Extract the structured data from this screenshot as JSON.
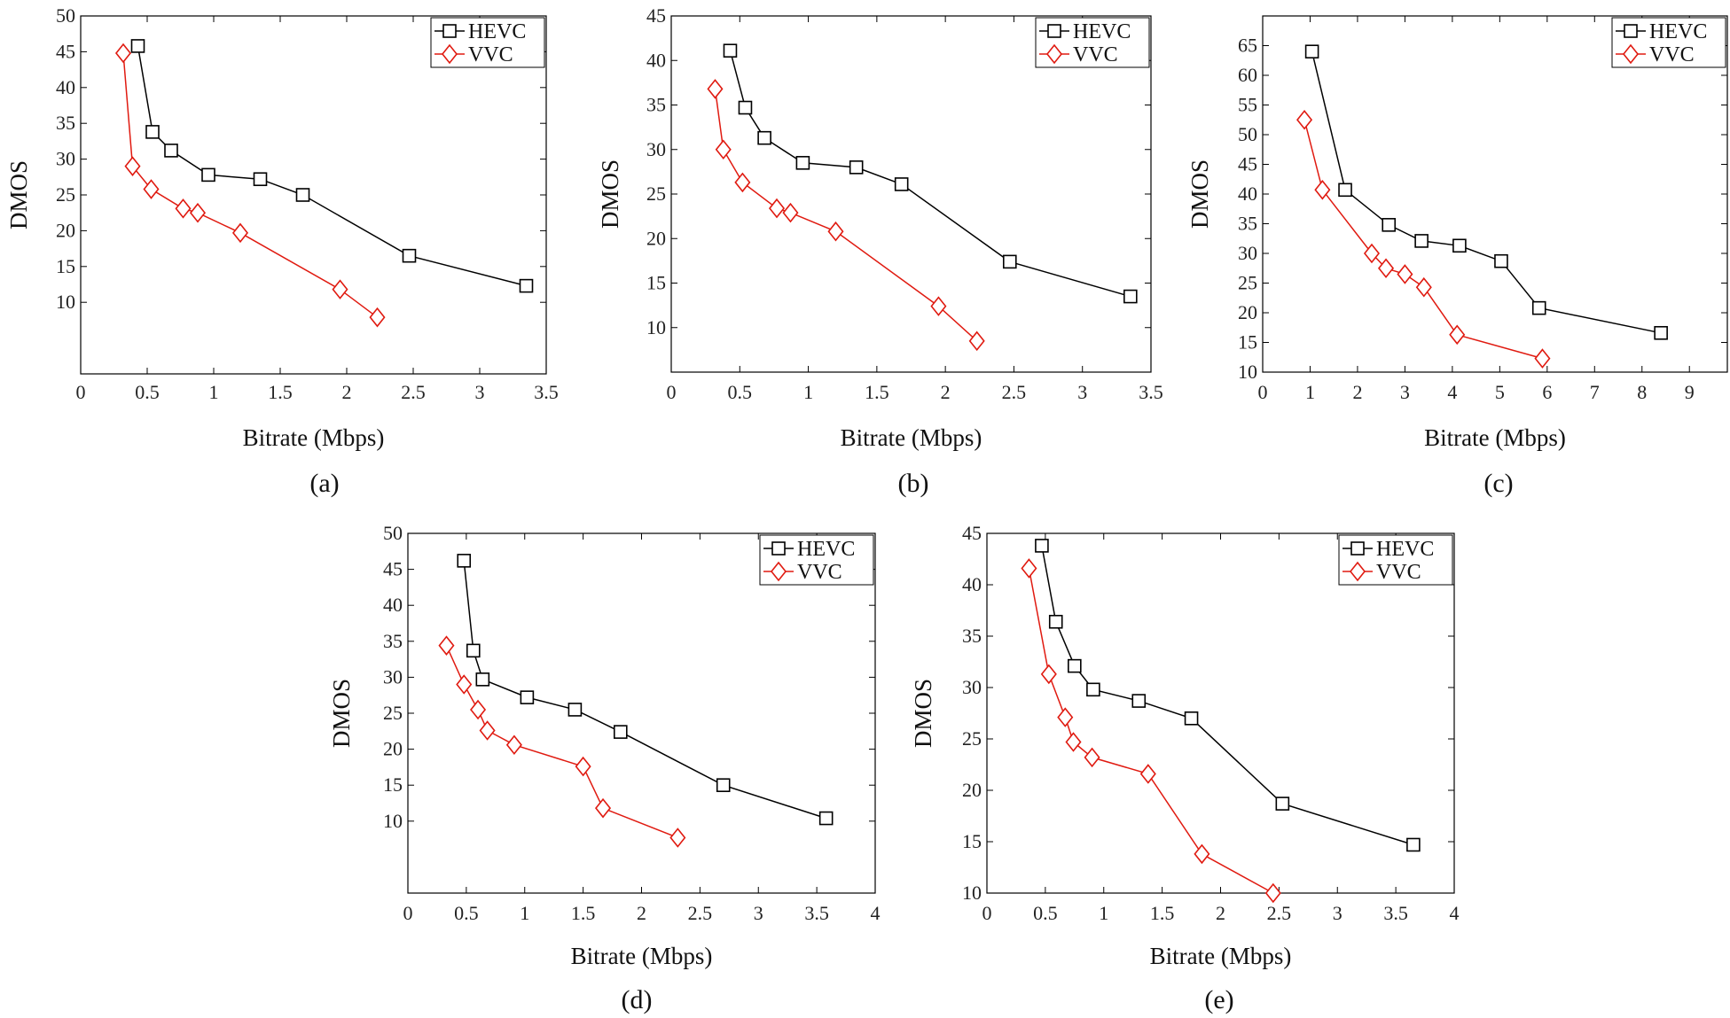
{
  "series_names": [
    "HEVC",
    "VVC"
  ],
  "colors": {
    "HEVC": "#000000",
    "VVC": "#e01a10"
  },
  "chart_data": [
    {
      "type": "line",
      "caption": "(a)",
      "xlabel": "Bitrate (Mbps)",
      "ylabel": "DMOS",
      "xlim": [
        0,
        3.5
      ],
      "ylim": [
        0,
        50
      ],
      "xticks": [
        0,
        0.5,
        1,
        1.5,
        2,
        2.5,
        3,
        3.5
      ],
      "xtick_labels": [
        "0",
        "0.5",
        "1",
        "1.5",
        "2",
        "2.5",
        "3",
        "3.5"
      ],
      "yticks": [
        10,
        15,
        20,
        25,
        30,
        35,
        40,
        45,
        50
      ],
      "ytick_labels": [
        "10",
        "15",
        "20",
        "25",
        "30",
        "35",
        "40",
        "45",
        "50"
      ],
      "legend": "top-right",
      "series": [
        {
          "name": "HEVC",
          "marker": "square",
          "x": [
            0.43,
            0.54,
            0.68,
            0.96,
            1.35,
            1.67,
            2.47,
            3.35
          ],
          "y": [
            45.8,
            33.8,
            31.2,
            27.8,
            27.2,
            25.0,
            16.5,
            12.3
          ]
        },
        {
          "name": "VVC",
          "marker": "diamond",
          "x": [
            0.32,
            0.39,
            0.53,
            0.77,
            0.88,
            1.2,
            1.95,
            2.23
          ],
          "y": [
            44.8,
            29.0,
            25.8,
            23.1,
            22.5,
            19.7,
            11.8,
            7.9
          ]
        }
      ]
    },
    {
      "type": "line",
      "caption": "(b)",
      "xlabel": "Bitrate (Mbps)",
      "ylabel": "DMOS",
      "xlim": [
        0,
        3.5
      ],
      "ylim": [
        5,
        45
      ],
      "xticks": [
        0,
        0.5,
        1,
        1.5,
        2,
        2.5,
        3,
        3.5
      ],
      "xtick_labels": [
        "0",
        "0.5",
        "1",
        "1.5",
        "2",
        "2.5",
        "3",
        "3.5"
      ],
      "yticks": [
        10,
        15,
        20,
        25,
        30,
        35,
        40,
        45
      ],
      "ytick_labels": [
        "10",
        "15",
        "20",
        "25",
        "30",
        "35",
        "40",
        "45"
      ],
      "legend": "top-right",
      "series": [
        {
          "name": "HEVC",
          "marker": "square",
          "x": [
            0.43,
            0.54,
            0.68,
            0.96,
            1.35,
            1.68,
            2.47,
            3.35
          ],
          "y": [
            41.1,
            34.7,
            31.3,
            28.5,
            28.0,
            26.1,
            17.4,
            13.5
          ]
        },
        {
          "name": "VVC",
          "marker": "diamond",
          "x": [
            0.32,
            0.38,
            0.52,
            0.77,
            0.87,
            1.2,
            1.95,
            2.23
          ],
          "y": [
            36.8,
            30.0,
            26.3,
            23.4,
            22.9,
            20.8,
            12.4,
            8.5
          ]
        }
      ]
    },
    {
      "type": "line",
      "caption": "(c)",
      "xlabel": "Bitrate (Mbps)",
      "ylabel": "DMOS",
      "xlim": [
        0,
        9.8
      ],
      "ylim": [
        10,
        70
      ],
      "xticks": [
        0,
        1,
        2,
        3,
        4,
        5,
        6,
        7,
        8,
        9
      ],
      "xtick_labels": [
        "0",
        "1",
        "2",
        "3",
        "4",
        "5",
        "6",
        "7",
        "8",
        "9"
      ],
      "yticks": [
        10,
        15,
        20,
        25,
        30,
        35,
        40,
        45,
        50,
        55,
        60,
        65
      ],
      "ytick_labels": [
        "10",
        "15",
        "20",
        "25",
        "30",
        "35",
        "40",
        "45",
        "50",
        "55",
        "60",
        "65"
      ],
      "legend": "top-right",
      "series": [
        {
          "name": "HEVC",
          "marker": "square",
          "x": [
            1.04,
            1.74,
            2.66,
            3.35,
            4.15,
            5.03,
            5.83,
            8.4
          ],
          "y": [
            64.0,
            40.7,
            34.8,
            32.1,
            31.3,
            28.7,
            20.8,
            16.6
          ]
        },
        {
          "name": "VVC",
          "marker": "diamond",
          "x": [
            0.88,
            1.26,
            2.3,
            2.6,
            3.0,
            3.4,
            4.1,
            5.9
          ],
          "y": [
            52.5,
            40.7,
            30.0,
            27.5,
            26.5,
            24.3,
            16.3,
            12.3
          ]
        }
      ]
    },
    {
      "type": "line",
      "caption": "(d)",
      "xlabel": "Bitrate (Mbps)",
      "ylabel": "DMOS",
      "xlim": [
        0,
        4
      ],
      "ylim": [
        0,
        50
      ],
      "xticks": [
        0,
        0.5,
        1,
        1.5,
        2,
        2.5,
        3,
        3.5,
        4
      ],
      "xtick_labels": [
        "0",
        "0.5",
        "1",
        "1.5",
        "2",
        "2.5",
        "3",
        "3.5",
        "4"
      ],
      "yticks": [
        10,
        15,
        20,
        25,
        30,
        35,
        40,
        45,
        50
      ],
      "ytick_labels": [
        "10",
        "15",
        "20",
        "25",
        "30",
        "35",
        "40",
        "45",
        "50"
      ],
      "legend": "top-right",
      "series": [
        {
          "name": "HEVC",
          "marker": "square",
          "x": [
            0.48,
            0.56,
            0.64,
            1.02,
            1.43,
            1.82,
            2.7,
            3.58
          ],
          "y": [
            46.2,
            33.7,
            29.7,
            27.2,
            25.5,
            22.4,
            15.0,
            10.4
          ]
        },
        {
          "name": "VVC",
          "marker": "diamond",
          "x": [
            0.33,
            0.48,
            0.6,
            0.68,
            0.91,
            1.5,
            1.67,
            2.31
          ],
          "y": [
            34.4,
            29.0,
            25.5,
            22.6,
            20.6,
            17.6,
            11.8,
            7.7
          ]
        }
      ]
    },
    {
      "type": "line",
      "caption": "(e)",
      "xlabel": "Bitrate (Mbps)",
      "ylabel": "DMOS",
      "xlim": [
        0,
        4
      ],
      "ylim": [
        10,
        45
      ],
      "xticks": [
        0,
        0.5,
        1,
        1.5,
        2,
        2.5,
        3,
        3.5,
        4
      ],
      "xtick_labels": [
        "0",
        "0.5",
        "1",
        "1.5",
        "2",
        "2.5",
        "3",
        "3.5",
        "4"
      ],
      "yticks": [
        10,
        15,
        20,
        25,
        30,
        35,
        40,
        45
      ],
      "ytick_labels": [
        "10",
        "15",
        "20",
        "25",
        "30",
        "35",
        "40",
        "45"
      ],
      "legend": "top-right",
      "series": [
        {
          "name": "HEVC",
          "marker": "square",
          "x": [
            0.47,
            0.59,
            0.75,
            0.91,
            1.3,
            1.75,
            2.53,
            3.65
          ],
          "y": [
            43.8,
            36.4,
            32.1,
            29.8,
            28.7,
            27.0,
            18.7,
            14.7
          ]
        },
        {
          "name": "VVC",
          "marker": "diamond",
          "x": [
            0.36,
            0.53,
            0.67,
            0.74,
            0.9,
            1.38,
            1.84,
            2.45
          ],
          "y": [
            41.6,
            31.3,
            27.1,
            24.7,
            23.2,
            21.6,
            13.8,
            10.0
          ]
        }
      ]
    }
  ]
}
